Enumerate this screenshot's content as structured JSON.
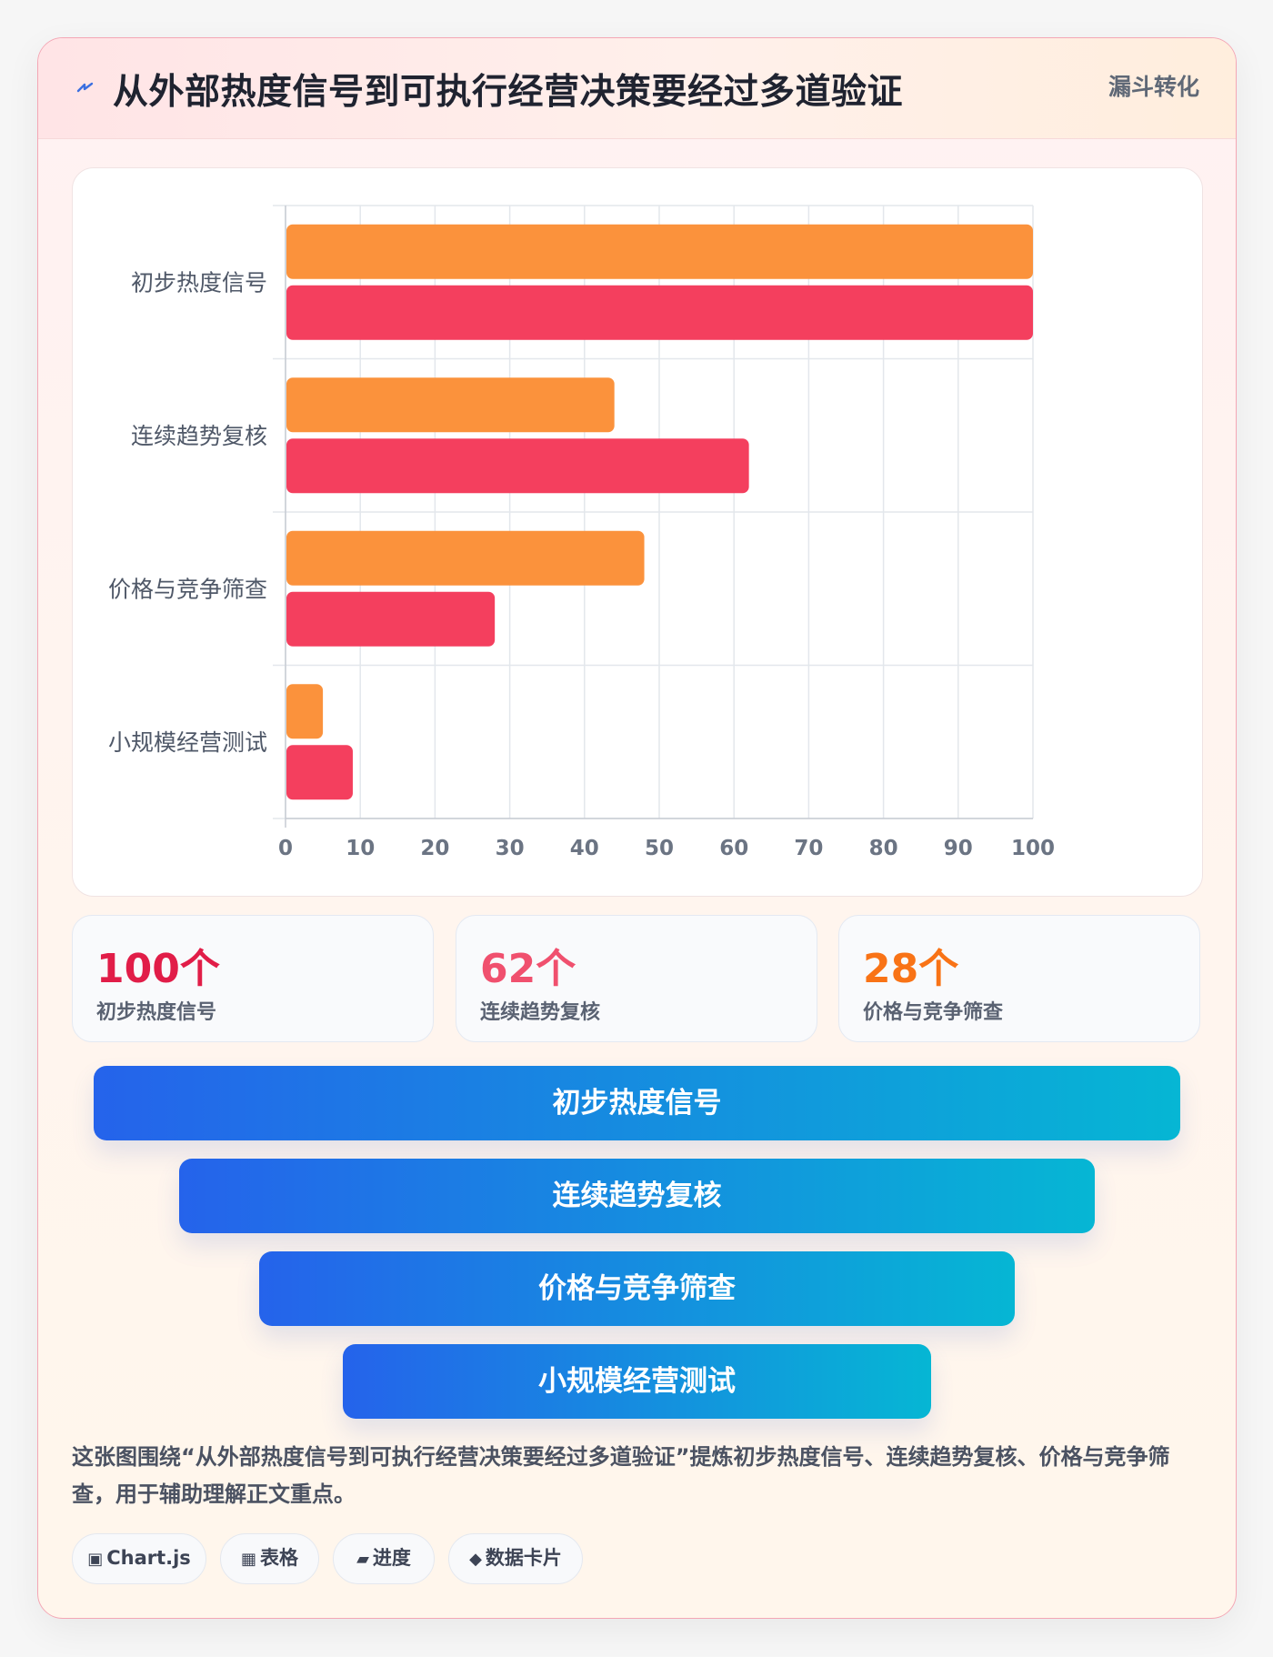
{
  "header": {
    "icon": "lightning-icon",
    "title": "从外部热度信号到可执行经营决策要经过多道验证",
    "tag": "漏斗转化"
  },
  "chart_data": {
    "type": "bar",
    "orientation": "horizontal",
    "categories": [
      "初步热度信号",
      "连续趋势复核",
      "价格与竞争筛查",
      "小规模经营测试"
    ],
    "series": [
      {
        "color": "#fb923c",
        "values": [
          100,
          44,
          48,
          5
        ]
      },
      {
        "color": "#f43f5e",
        "values": [
          100,
          62,
          28,
          9
        ]
      }
    ],
    "xlim": [
      0,
      100
    ],
    "xticks": [
      0,
      10,
      20,
      30,
      40,
      50,
      60,
      70,
      80,
      90,
      100
    ],
    "grid": true,
    "legend": "none"
  },
  "stats": [
    {
      "value": "100个",
      "label": "初步热度信号",
      "color": "#e11d48"
    },
    {
      "value": "62个",
      "label": "连续趋势复核",
      "color": "#f0506e"
    },
    {
      "value": "28个",
      "label": "价格与竞争筛查",
      "color": "#f97316"
    }
  ],
  "funnel": [
    {
      "label": "初步热度信号"
    },
    {
      "label": "连续趋势复核"
    },
    {
      "label": "价格与竞争筛查"
    },
    {
      "label": "小规模经营测试"
    }
  ],
  "description": "这张图围绕“从外部热度信号到可执行经营决策要经过多道验证”提炼初步热度信号、连续趋势复核、价格与竞争筛查，用于辅助理解正文重点。",
  "chips": [
    {
      "icon": "▣",
      "label": "Chart.js"
    },
    {
      "icon": "▦",
      "label": "表格"
    },
    {
      "icon": "▰",
      "label": "进度"
    },
    {
      "icon": "◆",
      "label": "数据卡片"
    }
  ]
}
